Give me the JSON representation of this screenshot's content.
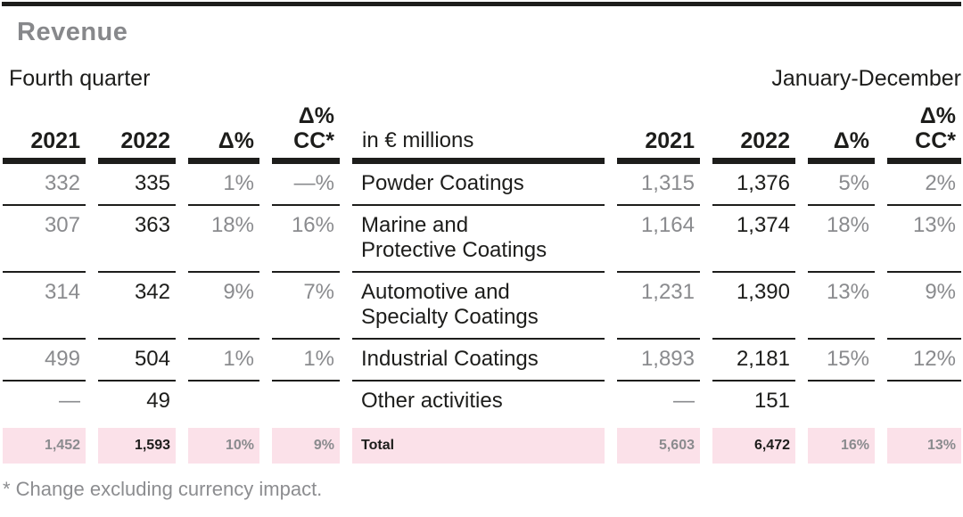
{
  "title": "Revenue",
  "period_left": "Fourth quarter",
  "period_right": "January-December",
  "table": {
    "unit_label": "in € millions",
    "col_headers": {
      "y2021": "2021",
      "y2022": "2022",
      "delta": "Δ%",
      "delta_cc": "Δ%\nCC*"
    },
    "rows": [
      {
        "label": "Powder Coatings",
        "q4": {
          "y2021": "332",
          "y2022": "335",
          "delta": "1%",
          "delta_cc": "—%"
        },
        "fy": {
          "y2021": "1,315",
          "y2022": "1,376",
          "delta": "5%",
          "delta_cc": "2%"
        }
      },
      {
        "label": "Marine and\nProtective Coatings",
        "q4": {
          "y2021": "307",
          "y2022": "363",
          "delta": "18%",
          "delta_cc": "16%"
        },
        "fy": {
          "y2021": "1,164",
          "y2022": "1,374",
          "delta": "18%",
          "delta_cc": "13%"
        }
      },
      {
        "label": "Automotive and\nSpecialty Coatings",
        "q4": {
          "y2021": "314",
          "y2022": "342",
          "delta": "9%",
          "delta_cc": "7%"
        },
        "fy": {
          "y2021": "1,231",
          "y2022": "1,390",
          "delta": "13%",
          "delta_cc": "9%"
        }
      },
      {
        "label": "Industrial Coatings",
        "q4": {
          "y2021": "499",
          "y2022": "504",
          "delta": "1%",
          "delta_cc": "1%"
        },
        "fy": {
          "y2021": "1,893",
          "y2022": "2,181",
          "delta": "15%",
          "delta_cc": "12%"
        }
      },
      {
        "label": "Other activities",
        "q4": {
          "y2021": "—",
          "y2022": "49",
          "delta": "",
          "delta_cc": ""
        },
        "fy": {
          "y2021": "—",
          "y2022": "151",
          "delta": "",
          "delta_cc": ""
        }
      },
      {
        "label": "Total",
        "q4": {
          "y2021": "1,452",
          "y2022": "1,593",
          "delta": "10%",
          "delta_cc": "9%"
        },
        "fy": {
          "y2021": "5,603",
          "y2022": "6,472",
          "delta": "16%",
          "delta_cc": "13%"
        }
      }
    ],
    "footnote": "* Change excluding currency impact."
  },
  "colors": {
    "accent_pink": "#fbe1e9",
    "text_black": "#1d1d1b",
    "text_gray": "#8a8b8e"
  }
}
